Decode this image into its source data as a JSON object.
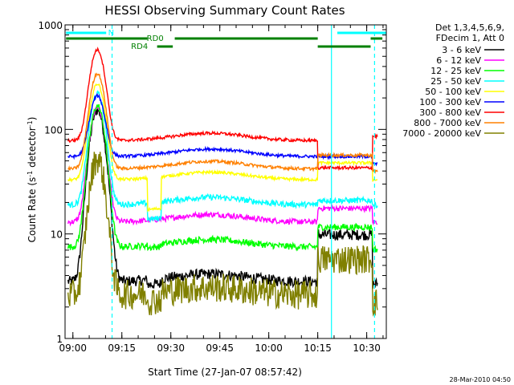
{
  "chart_data": {
    "type": "line",
    "title": "HESSI Observing Summary Count Rates",
    "xlabel": "Start Time (27-Jan-07 08:57:42)",
    "ylabel": "Count Rate (s",
    "ylabel_sup": "-1",
    "ylabel_mid": " detector",
    "ylabel_close": ")",
    "yscale": "log",
    "ylim": [
      1,
      1000
    ],
    "xlim": [
      8.96,
      10.6
    ],
    "x_unit": "hours UT",
    "x_ticks": [
      {
        "x": 9.0,
        "label": "09:00"
      },
      {
        "x": 9.25,
        "label": "09:15"
      },
      {
        "x": 9.5,
        "label": "09:30"
      },
      {
        "x": 9.75,
        "label": "09:45"
      },
      {
        "x": 10.0,
        "label": "10:00"
      },
      {
        "x": 10.25,
        "label": "10:15"
      },
      {
        "x": 10.5,
        "label": "10:30"
      }
    ],
    "y_ticks": [
      {
        "y": 1,
        "label": "1"
      },
      {
        "y": 10,
        "label": "10"
      },
      {
        "y": 100,
        "label": "100"
      },
      {
        "y": 1000,
        "label": "1000"
      }
    ],
    "legend_header": [
      "Det 1,3,4,5,6,9,",
      "FDecim 1, Att 0"
    ],
    "legend_position": "right",
    "timestamp": "28-Mar-2010 04:50",
    "annotations": {
      "N": {
        "label": "N",
        "color": "#00ffff",
        "segments": [
          [
            8.965,
            9.17
          ],
          [
            10.35,
            10.6
          ]
        ]
      },
      "RD0": {
        "label": "RD0",
        "color": "#008000",
        "segments": [
          [
            8.965,
            9.38
          ],
          [
            9.52,
            10.25
          ],
          [
            10.52,
            10.58
          ]
        ]
      },
      "RD4": {
        "label": "RD4",
        "color": "#008000",
        "segments": [
          [
            9.43,
            9.51
          ],
          [
            10.25,
            10.52
          ]
        ]
      }
    },
    "vlines": [
      {
        "x": 9.2,
        "color": "#00ffff",
        "style": "dashed"
      },
      {
        "x": 10.32,
        "color": "#00ffff",
        "style": "solid"
      },
      {
        "x": 10.54,
        "color": "#00ffff",
        "style": "dashed"
      }
    ],
    "series": [
      {
        "name": "3 - 6 keV",
        "color": "#000000",
        "base": 3.5,
        "peak": 150,
        "b1": 0.9,
        "b2": 0.95,
        "late": 2.8,
        "noise": 0.12
      },
      {
        "name": "6 - 12 keV",
        "color": "#ff00ff",
        "base": 13,
        "peak": 150,
        "b1": 1.0,
        "b2": 1.0,
        "late": 1.35,
        "noise": 0.06
      },
      {
        "name": "12 - 25 keV",
        "color": "#00ff00",
        "base": 7.5,
        "peak": 160,
        "b1": 0.95,
        "b2": 0.95,
        "late": 1.55,
        "noise": 0.07
      },
      {
        "name": "25 - 50 keV",
        "color": "#00ffff",
        "base": 19,
        "peak": 200,
        "b1": 0.7,
        "b2": 1.0,
        "late": 1.1,
        "noise": 0.06
      },
      {
        "name": "50 - 100 keV",
        "color": "#ffff00",
        "base": 33,
        "peak": 240,
        "b1": 0.5,
        "b2": 1.0,
        "late": 1.45,
        "noise": 0.03
      },
      {
        "name": "100 - 300 keV",
        "color": "#0000ff",
        "base": 55,
        "peak": 155,
        "b1": 1.0,
        "b2": 0.85,
        "late": 1.0,
        "noise": 0.03
      },
      {
        "name": "300 - 800 keV",
        "color": "#ff0000",
        "base": 78,
        "peak": 500,
        "b1": 1.0,
        "b2": 1.1,
        "late": 0.55,
        "noise": 0.03
      },
      {
        "name": "800 - 7000 keV",
        "color": "#ff8000",
        "base": 42,
        "peak": 300,
        "b1": 1.0,
        "b2": 0.95,
        "late": 1.35,
        "noise": 0.03
      },
      {
        "name": "7000 - 20000 keV",
        "color": "#808000",
        "base": 2.6,
        "peak": 50,
        "b1": 0.85,
        "b2": 0.85,
        "late": 2.2,
        "noise": 0.28
      }
    ]
  }
}
